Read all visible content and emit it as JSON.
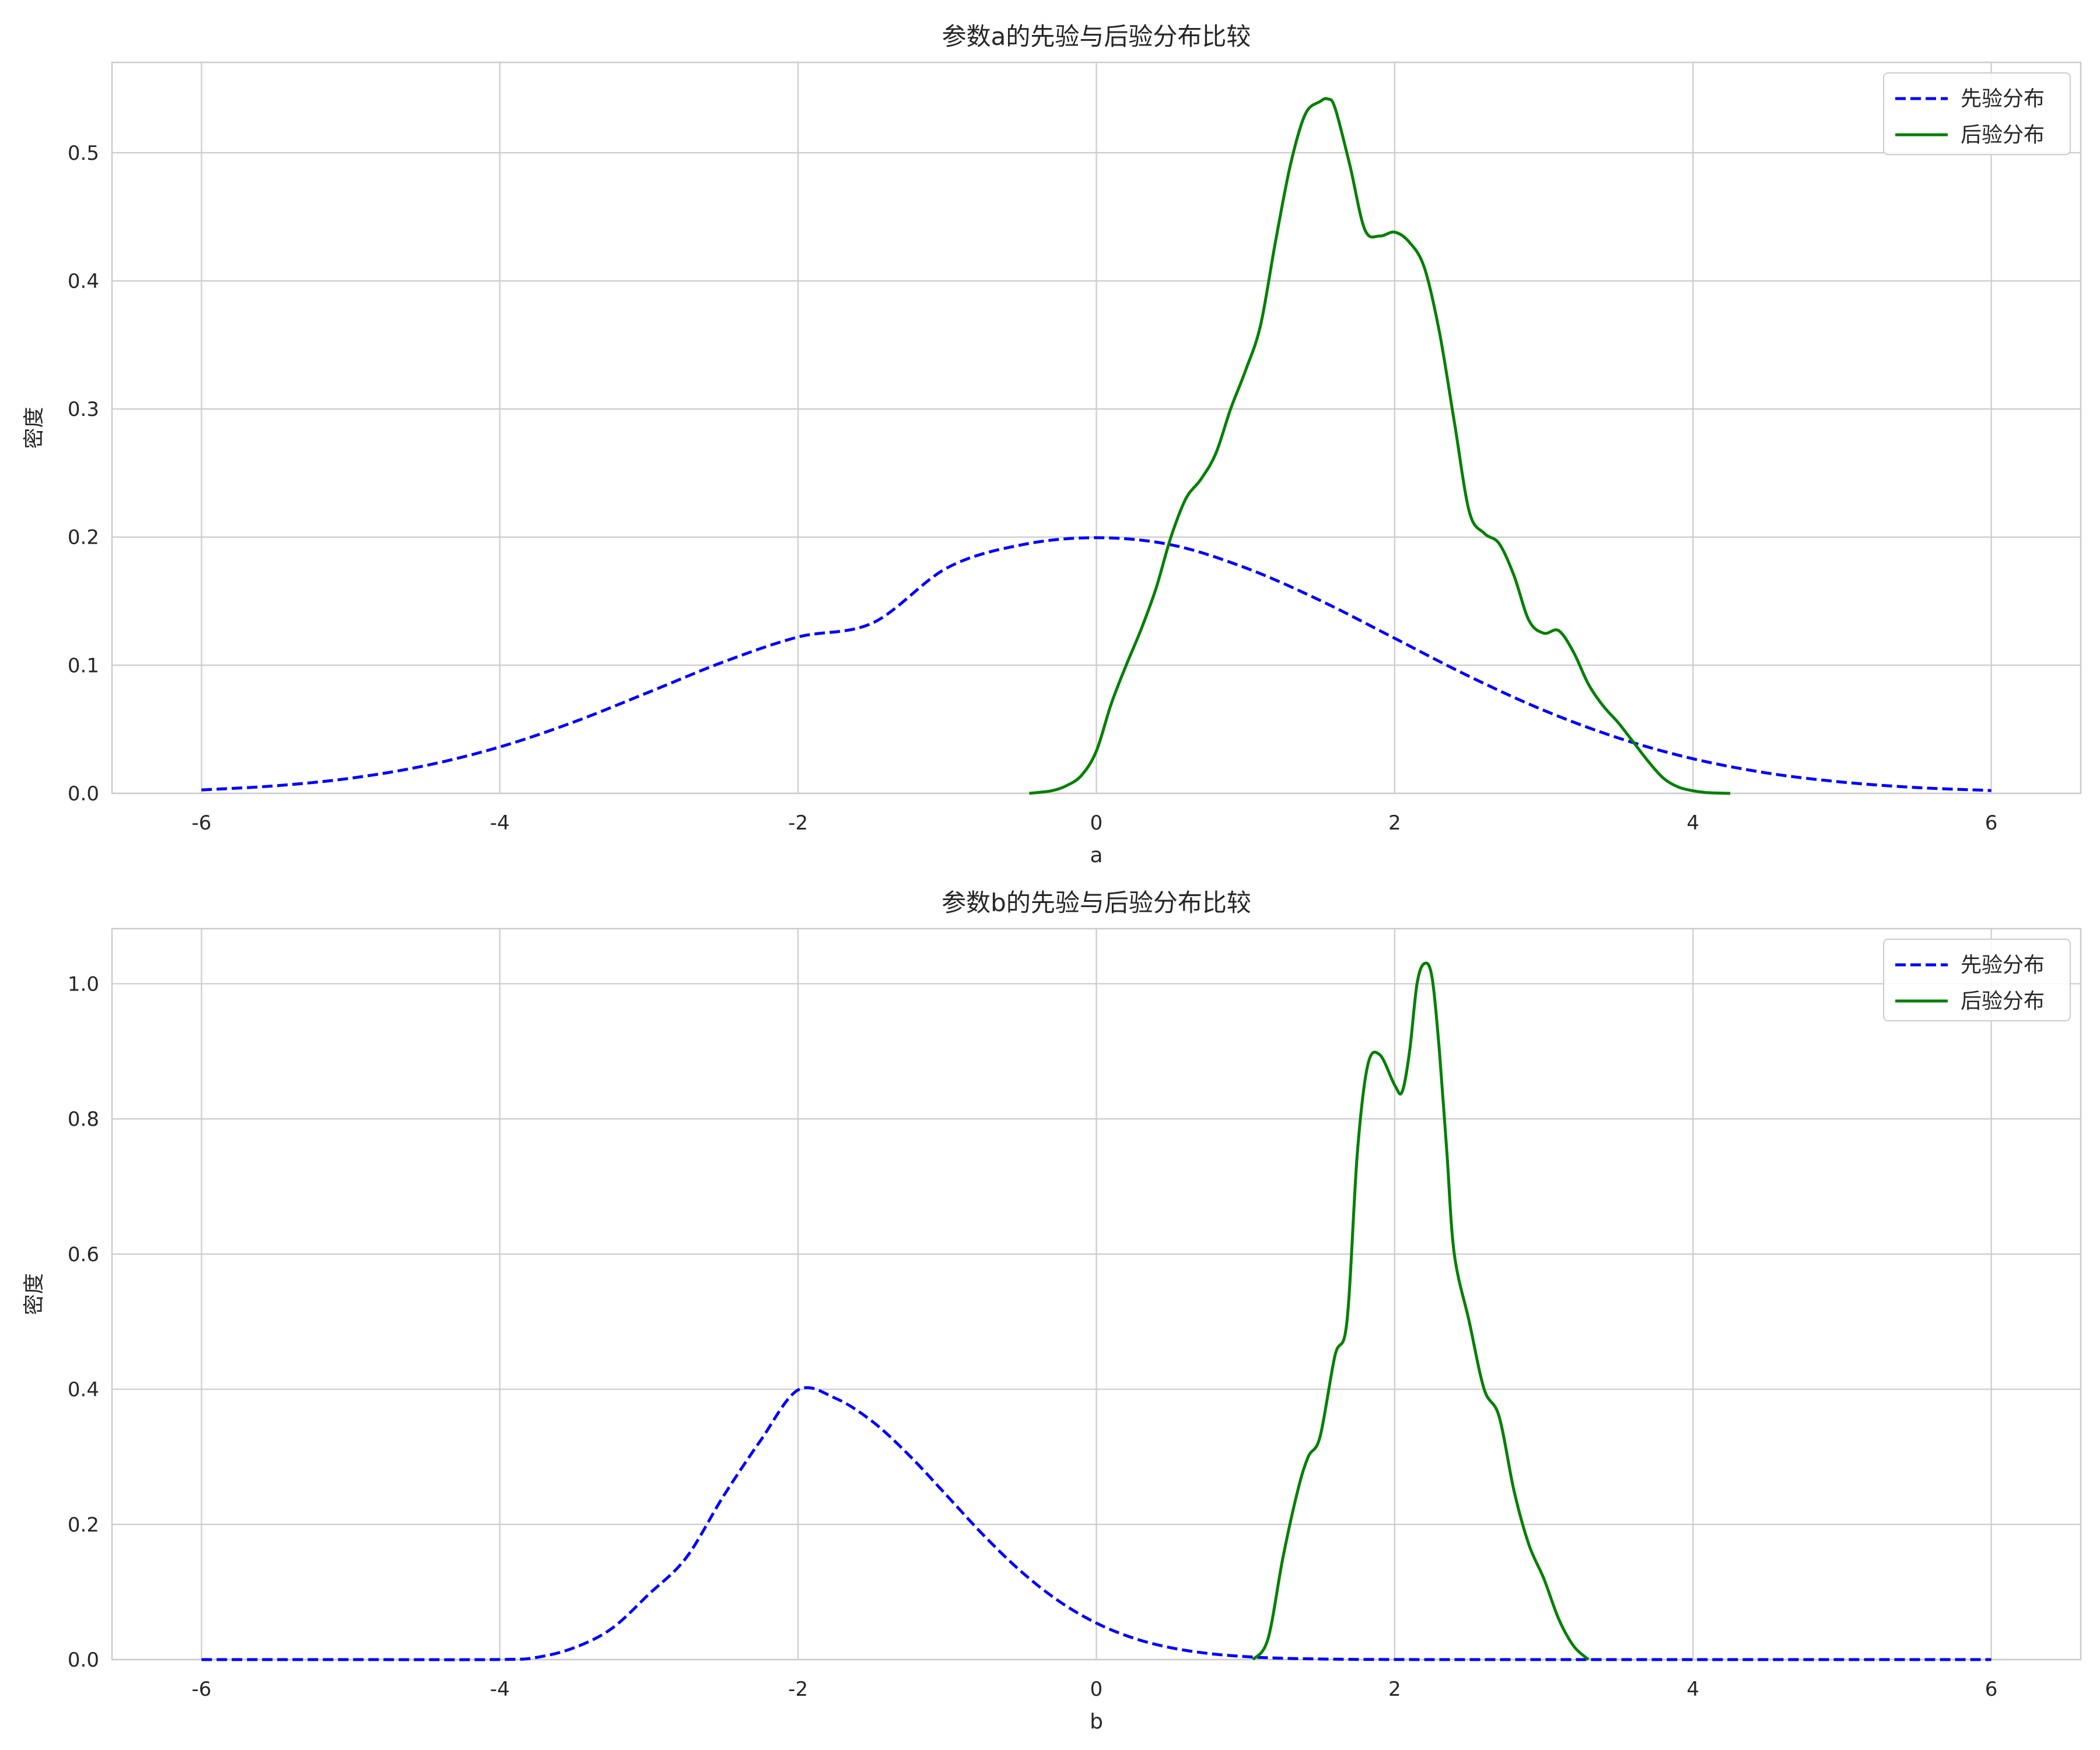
{
  "colors": {
    "prior": "#0000ff",
    "posterior": "#008000",
    "grid": "#cccccc",
    "frame": "#cccccc",
    "background": "#ffffff"
  },
  "chart_data": [
    {
      "type": "line",
      "title": "参数a的先验与后验分布比较",
      "xlabel": "a",
      "ylabel": "密度",
      "xlim": [
        -6.6,
        6.6
      ],
      "ylim": [
        0,
        0.5705
      ],
      "xticks": [
        -6,
        -4,
        -2,
        0,
        2,
        4,
        6
      ],
      "xtick_labels": [
        "-6",
        "-4",
        "-2",
        "0",
        "2",
        "4",
        "6"
      ],
      "yticks": [
        0,
        0.1,
        0.2,
        0.3,
        0.4,
        0.5
      ],
      "ytick_labels": [
        "0.0",
        "0.1",
        "0.2",
        "0.3",
        "0.4",
        "0.5"
      ],
      "grid": true,
      "legend_position": "top-right",
      "series": [
        {
          "name": "先验分布",
          "style": "dashed",
          "color": "#0000ff",
          "x": [
            -6,
            -5.5,
            -5,
            -4.5,
            -4,
            -3.5,
            -3,
            -2.5,
            -2,
            -1.5,
            -1,
            -0.5,
            0,
            0.5,
            1,
            1.5,
            2,
            2.5,
            3,
            3.5,
            4,
            4.5,
            5,
            5.5,
            6
          ],
          "y": [
            0.0027,
            0.0059,
            0.0118,
            0.0216,
            0.0362,
            0.0558,
            0.079,
            0.1026,
            0.122,
            0.133,
            0.176,
            0.194,
            0.1995,
            0.194,
            0.176,
            0.1506,
            0.121,
            0.0913,
            0.0648,
            0.0432,
            0.027,
            0.0158,
            0.0088,
            0.0045,
            0.0022
          ]
        },
        {
          "name": "后验分布",
          "style": "solid",
          "color": "#008000",
          "x": [
            -0.45,
            -0.3,
            -0.2,
            -0.1,
            0,
            0.1,
            0.2,
            0.3,
            0.4,
            0.5,
            0.6,
            0.7,
            0.8,
            0.9,
            1.0,
            1.1,
            1.2,
            1.3,
            1.4,
            1.5,
            1.55,
            1.6,
            1.7,
            1.8,
            1.9,
            2.0,
            2.1,
            2.2,
            2.3,
            2.4,
            2.5,
            2.6,
            2.7,
            2.8,
            2.9,
            3.0,
            3.1,
            3.2,
            3.3,
            3.4,
            3.5,
            3.6,
            3.7,
            3.8,
            3.9,
            4.0,
            4.1,
            4.25
          ],
          "y": [
            0.0,
            0.002,
            0.006,
            0.014,
            0.033,
            0.07,
            0.1,
            0.128,
            0.16,
            0.2,
            0.23,
            0.245,
            0.265,
            0.3,
            0.33,
            0.365,
            0.43,
            0.49,
            0.53,
            0.54,
            0.542,
            0.535,
            0.49,
            0.44,
            0.435,
            0.438,
            0.43,
            0.41,
            0.36,
            0.29,
            0.22,
            0.203,
            0.195,
            0.17,
            0.135,
            0.125,
            0.127,
            0.11,
            0.085,
            0.068,
            0.055,
            0.04,
            0.025,
            0.012,
            0.005,
            0.002,
            0.0005,
            0.0
          ]
        }
      ]
    },
    {
      "type": "line",
      "title": "参数b的先验与后验分布比较",
      "xlabel": "b",
      "ylabel": "密度",
      "xlim": [
        -6.6,
        6.6
      ],
      "ylim": [
        0,
        1.0815
      ],
      "xticks": [
        -6,
        -4,
        -2,
        0,
        2,
        4,
        6
      ],
      "xtick_labels": [
        "-6",
        "-4",
        "-2",
        "0",
        "2",
        "4",
        "6"
      ],
      "yticks": [
        0,
        0.2,
        0.4,
        0.6,
        0.8,
        1.0
      ],
      "ytick_labels": [
        "0.0",
        "0.2",
        "0.4",
        "0.6",
        "0.8",
        "1.0"
      ],
      "grid": true,
      "legend_position": "top-right",
      "series": [
        {
          "name": "先验分布",
          "style": "dashed",
          "color": "#0000ff",
          "x": [
            -6,
            -5,
            -4,
            -3.75,
            -3.5,
            -3.25,
            -3,
            -2.75,
            -2.5,
            -2.25,
            -2,
            -1.75,
            -1.5,
            -1.25,
            -1,
            -0.75,
            -0.5,
            -0.25,
            0,
            0.25,
            0.5,
            0.75,
            1,
            1.25,
            1.5,
            1.75,
            2,
            2.25,
            2.5,
            2.75,
            3,
            3.25,
            3.5,
            3.75,
            4,
            5,
            6
          ],
          "y": [
            0.0,
            0.0,
            0.0001,
            0.0034,
            0.0176,
            0.0458,
            0.0968,
            0.1508,
            0.242,
            0.3246,
            0.3989,
            0.3867,
            0.352,
            0.3011,
            0.242,
            0.1826,
            0.1295,
            0.0863,
            0.054,
            0.0317,
            0.0175,
            0.0091,
            0.0044,
            0.002,
            0.0009,
            0.0003,
            0.0001,
            0.0,
            0.0,
            0.0,
            0.0,
            0.0,
            0.0,
            0.0,
            0.0,
            0.0,
            0.0
          ]
        },
        {
          "name": "后验分布",
          "style": "solid",
          "color": "#008000",
          "x": [
            1.05,
            1.15,
            1.25,
            1.35,
            1.42,
            1.5,
            1.6,
            1.68,
            1.75,
            1.82,
            1.9,
            2.0,
            2.05,
            2.1,
            2.15,
            2.2,
            2.25,
            2.3,
            2.35,
            2.4,
            2.5,
            2.6,
            2.7,
            2.8,
            2.9,
            3.0,
            3.1,
            3.2,
            3.3
          ],
          "y": [
            0.0,
            0.03,
            0.15,
            0.25,
            0.3,
            0.33,
            0.45,
            0.5,
            0.75,
            0.88,
            0.895,
            0.85,
            0.84,
            0.9,
            1.0,
            1.03,
            1.01,
            0.9,
            0.75,
            0.6,
            0.5,
            0.4,
            0.36,
            0.25,
            0.17,
            0.12,
            0.06,
            0.02,
            0.0
          ]
        }
      ]
    }
  ]
}
